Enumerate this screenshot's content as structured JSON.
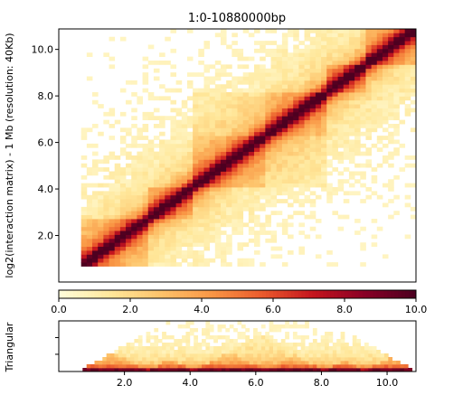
{
  "chart_data": [
    {
      "type": "heatmap",
      "title": "1:0-10880000bp",
      "ylabel": "log2(interaction matrix) - 1 Mb (resolution: 40Kb)",
      "xlim": [
        0,
        10.88
      ],
      "ylim": [
        0,
        10.88
      ],
      "y_ticks": [
        "2.0",
        "4.0",
        "6.0",
        "8.0",
        "10.0"
      ],
      "y_tick_values": [
        2,
        4,
        6,
        8,
        10
      ],
      "colormap": [
        "#fffcd8",
        "#ffe79a",
        "#fdc26a",
        "#f99645",
        "#ea5a2c",
        "#c4151e",
        "#8a0026",
        "#4d0020"
      ],
      "domains_mb": [
        [
          0.6,
          2.7
        ],
        [
          2.7,
          4.1
        ],
        [
          4.1,
          6.3
        ],
        [
          6.3,
          8.1
        ],
        [
          8.1,
          9.3
        ],
        [
          9.3,
          10.88
        ]
      ],
      "colorbar": {
        "range": [
          0.0,
          10.0
        ],
        "ticks": [
          "0.0",
          "2.0",
          "4.0",
          "6.0",
          "8.0",
          "10.0"
        ],
        "tick_values": [
          0,
          2,
          4,
          6,
          8,
          10
        ]
      }
    },
    {
      "type": "heatmap",
      "ylabel": "Triangular",
      "xlim": [
        0,
        10.88
      ],
      "x_ticks": [
        "2.0",
        "4.0",
        "6.0",
        "8.0",
        "10.0"
      ],
      "x_tick_values": [
        2,
        4,
        6,
        8,
        10
      ]
    }
  ]
}
